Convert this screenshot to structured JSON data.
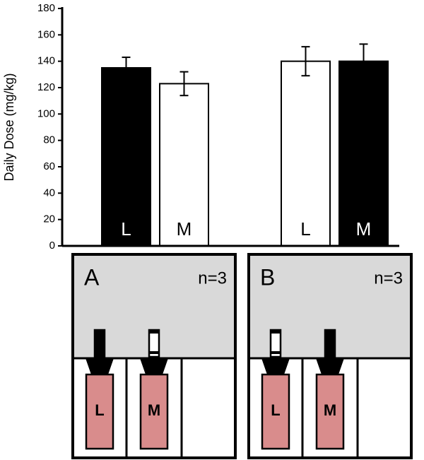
{
  "chart_data": {
    "type": "bar",
    "y_label": "Daily Dose (mg/kg)",
    "categories": [
      "L",
      "M",
      "L",
      "M"
    ],
    "values": [
      135,
      123,
      140,
      140
    ],
    "errors": [
      8,
      9,
      11,
      13
    ],
    "colors": [
      "#000000",
      "#ffffff",
      "#ffffff",
      "#000000"
    ],
    "ylim": [
      0,
      180
    ],
    "yticks": [
      0,
      20,
      40,
      60,
      80,
      100,
      120,
      140,
      160,
      180
    ]
  },
  "panels": [
    {
      "label": "A",
      "n": "n=3",
      "bottles": [
        {
          "label": "L",
          "tip": "#000000"
        },
        {
          "label": "M",
          "tip": "#ffffff"
        }
      ]
    },
    {
      "label": "B",
      "n": "n=3",
      "bottles": [
        {
          "label": "L",
          "tip": "#ffffff"
        },
        {
          "label": "M",
          "tip": "#000000"
        }
      ]
    }
  ]
}
